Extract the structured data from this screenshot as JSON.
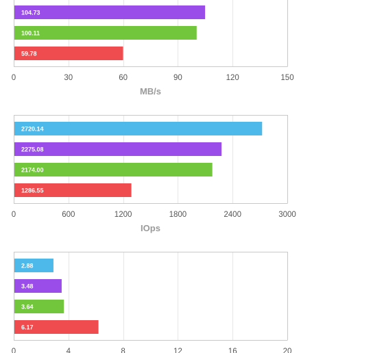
{
  "colors": {
    "blue": "#4db8ea",
    "purple": "#9a4de8",
    "green": "#72c63c",
    "red": "#ef4c50",
    "grid": "#e6e6e6",
    "frame": "#c8c8c8",
    "tick": "#555555",
    "xlabel": "#9a9a9a",
    "bar_text": "#ffffff"
  },
  "chart_data": [
    {
      "type": "bar",
      "orientation": "horizontal",
      "xlabel": "MB/s",
      "xlim": [
        0,
        150
      ],
      "ticks": [
        "0",
        "30",
        "60",
        "90",
        "120",
        "150"
      ],
      "tick_values": [
        0,
        30,
        60,
        90,
        120,
        150
      ],
      "grid": true,
      "bars": [
        {
          "value": 104.73,
          "label": "104.73",
          "color": "purple"
        },
        {
          "value": 100.11,
          "label": "100.11",
          "color": "green"
        },
        {
          "value": 59.78,
          "label": "59.78",
          "color": "red"
        }
      ]
    },
    {
      "type": "bar",
      "orientation": "horizontal",
      "xlabel": "IOps",
      "xlim": [
        0,
        3000
      ],
      "ticks": [
        "0",
        "600",
        "1200",
        "1800",
        "2400",
        "3000"
      ],
      "tick_values": [
        0,
        600,
        1200,
        1800,
        2400,
        3000
      ],
      "grid": true,
      "bars": [
        {
          "value": 2720.14,
          "label": "2720.14",
          "color": "blue"
        },
        {
          "value": 2275.08,
          "label": "2275.08",
          "color": "purple"
        },
        {
          "value": 2174.0,
          "label": "2174.00",
          "color": "green"
        },
        {
          "value": 1286.55,
          "label": "1286.55",
          "color": "red"
        }
      ]
    },
    {
      "type": "bar",
      "orientation": "horizontal",
      "xlabel": "",
      "xlim": [
        0,
        20
      ],
      "ticks": [
        "0",
        "4",
        "8",
        "12",
        "16",
        "20"
      ],
      "tick_values": [
        0,
        4,
        8,
        12,
        16,
        20
      ],
      "grid": true,
      "bars": [
        {
          "value": 2.88,
          "label": "2.88",
          "color": "blue"
        },
        {
          "value": 3.48,
          "label": "3.48",
          "color": "purple"
        },
        {
          "value": 3.64,
          "label": "3.64",
          "color": "green"
        },
        {
          "value": 6.17,
          "label": "6.17",
          "color": "red"
        }
      ]
    }
  ]
}
